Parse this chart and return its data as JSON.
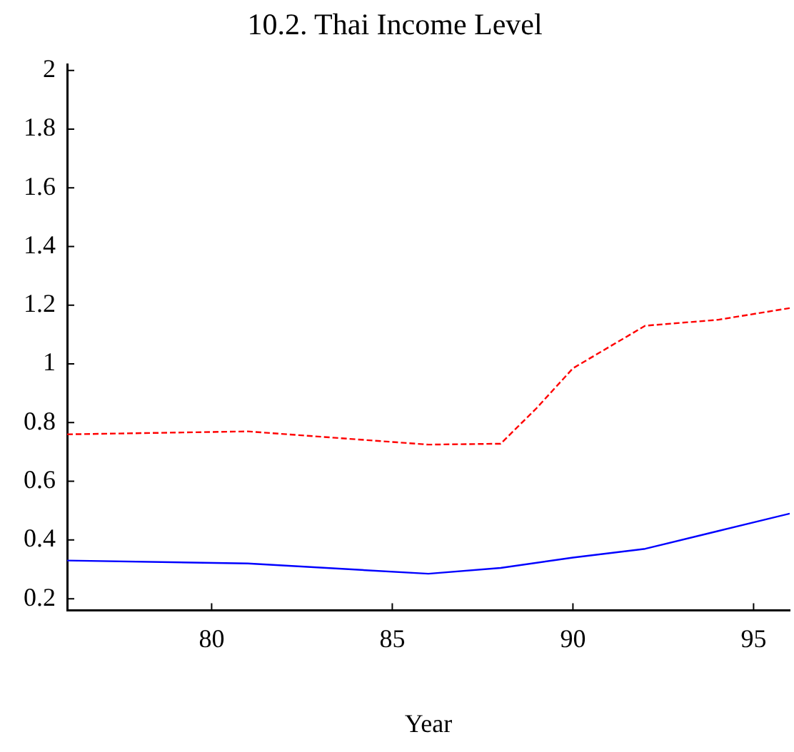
{
  "chart_data": {
    "type": "line",
    "title": "10.2. Thai Income Level",
    "xlabel": "Year",
    "xlim": [
      76,
      96
    ],
    "xticks": [
      80,
      85,
      90,
      95
    ],
    "ylim": [
      0.16,
      2.02
    ],
    "yticks": [
      0.2,
      0.4,
      0.6,
      0.8,
      1,
      1.2,
      1.4,
      1.6,
      1.8,
      2
    ],
    "grid": false,
    "legend": false,
    "marker": "none",
    "series": [
      {
        "color": "#ff0000",
        "line_style": "dashed",
        "x": [
          76,
          81,
          86,
          88,
          89,
          90,
          92,
          94,
          96
        ],
        "values": [
          0.76,
          0.77,
          0.725,
          0.728,
          0.85,
          0.985,
          1.13,
          1.15,
          1.19
        ]
      },
      {
        "color": "#0000ff",
        "line_style": "solid",
        "x": [
          76,
          81,
          86,
          88,
          90,
          92,
          94,
          96
        ],
        "values": [
          0.33,
          0.32,
          0.285,
          0.305,
          0.34,
          0.37,
          0.43,
          0.49
        ]
      }
    ]
  }
}
